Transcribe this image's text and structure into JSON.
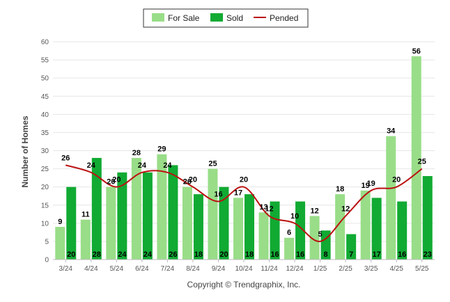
{
  "chart_data": {
    "type": "bar",
    "categories": [
      "3/24",
      "4/24",
      "5/24",
      "6/24",
      "7/24",
      "8/24",
      "9/24",
      "10/24",
      "11/24",
      "12/24",
      "1/25",
      "2/25",
      "3/25",
      "4/25",
      "5/25"
    ],
    "series": [
      {
        "name": "For Sale",
        "kind": "bar",
        "color": "#99dd88",
        "values": [
          9,
          11,
          20,
          28,
          29,
          20,
          25,
          17,
          13,
          6,
          12,
          18,
          19,
          34,
          56
        ]
      },
      {
        "name": "Sold",
        "kind": "bar",
        "color": "#11aa33",
        "values": [
          20,
          28,
          24,
          24,
          26,
          18,
          20,
          18,
          16,
          16,
          8,
          7,
          17,
          16,
          23
        ]
      },
      {
        "name": "Pended",
        "kind": "line",
        "color": "#bb1111",
        "values": [
          26,
          24,
          20,
          24,
          24,
          20,
          16,
          20,
          12,
          10,
          5,
          12,
          19,
          20,
          25
        ]
      }
    ],
    "ylabel": "Number of Homes",
    "xlabel": "",
    "ylim": [
      0,
      60
    ],
    "yticks": [
      0,
      5,
      10,
      15,
      20,
      25,
      30,
      35,
      40,
      45,
      50,
      55,
      60
    ],
    "grid": true,
    "legend_position": "top-center",
    "copyright": "Copyright © Trendgraphix, Inc."
  }
}
